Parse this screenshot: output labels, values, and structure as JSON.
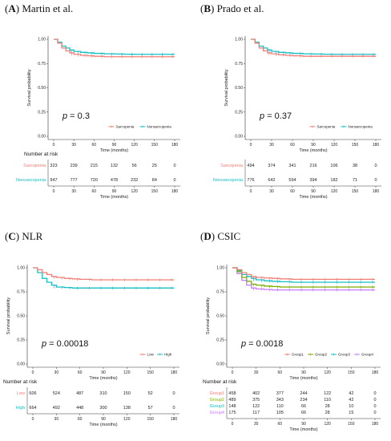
{
  "chart_data": [
    {
      "type": "line",
      "panel_letter": "A",
      "title": "Martin et al.",
      "xlabel": "Time (months)",
      "ylabel": "Survival probability",
      "xlim": [
        0,
        180
      ],
      "ylim": [
        0,
        1
      ],
      "x_ticks": [
        "0",
        "30",
        "60",
        "90",
        "120",
        "150",
        "180"
      ],
      "y_ticks": [
        "0.00",
        "0.25",
        "0.50",
        "0.75",
        "1.00"
      ],
      "p_label": "p",
      "p_value": " = 0.3",
      "legend_position": "bottom-right",
      "x": [
        0,
        6,
        12,
        18,
        24,
        30,
        40,
        50,
        60,
        75,
        90,
        105,
        120,
        135,
        150,
        165,
        180
      ],
      "series": [
        {
          "name": "Sarcopenia",
          "color": "#f07f77",
          "values": [
            1.0,
            0.96,
            0.91,
            0.88,
            0.86,
            0.845,
            0.835,
            0.83,
            0.825,
            0.82,
            0.82,
            0.82,
            0.82,
            0.82,
            0.82,
            0.82,
            0.82
          ]
        },
        {
          "name": "Nonsarcopenia",
          "color": "#17bfc4",
          "values": [
            1.0,
            0.97,
            0.93,
            0.91,
            0.89,
            0.875,
            0.865,
            0.86,
            0.855,
            0.85,
            0.848,
            0.846,
            0.845,
            0.845,
            0.845,
            0.845,
            0.845
          ]
        }
      ],
      "risk_table": {
        "title": "Number at risk",
        "rows": [
          {
            "label": "Sarcopenia",
            "color": "#f07f77",
            "values": [
              "323",
              "239",
              "215",
              "132",
              "56",
              "25",
              "0"
            ]
          },
          {
            "label": "Nonsarcopenia",
            "color": "#17bfc4",
            "values": [
              "947",
              "777",
              "720",
              "478",
              "232",
              "84",
              "0"
            ]
          }
        ],
        "xlabel": "Time (months)",
        "x_ticks": [
          "0",
          "30",
          "60",
          "90",
          "120",
          "150",
          "180"
        ]
      }
    },
    {
      "type": "line",
      "panel_letter": "B",
      "title": "Prado et al.",
      "xlabel": "Time (months)",
      "ylabel": "Survival probability",
      "xlim": [
        0,
        180
      ],
      "ylim": [
        0,
        1
      ],
      "x_ticks": [
        "0",
        "30",
        "60",
        "90",
        "120",
        "150",
        "180"
      ],
      "y_ticks": [
        "0.00",
        "0.25",
        "0.50",
        "0.75",
        "1.00"
      ],
      "p_label": "p",
      "p_value": " = 0.37",
      "legend_position": "bottom-right",
      "x": [
        0,
        6,
        12,
        18,
        24,
        30,
        40,
        50,
        60,
        75,
        90,
        105,
        120,
        135,
        150,
        165,
        180
      ],
      "series": [
        {
          "name": "Sarcopenia",
          "color": "#f07f77",
          "values": [
            1.0,
            0.96,
            0.91,
            0.88,
            0.86,
            0.85,
            0.84,
            0.835,
            0.83,
            0.825,
            0.825,
            0.825,
            0.825,
            0.825,
            0.825,
            0.825,
            0.825
          ]
        },
        {
          "name": "Nonsarcopenia",
          "color": "#17bfc4",
          "values": [
            1.0,
            0.97,
            0.93,
            0.91,
            0.89,
            0.875,
            0.865,
            0.86,
            0.855,
            0.85,
            0.848,
            0.846,
            0.845,
            0.845,
            0.845,
            0.845,
            0.845
          ]
        }
      ],
      "risk_table": {
        "title": "",
        "rows": [
          {
            "label": "Sarcopenia",
            "color": "#f07f77",
            "values": [
              "494",
              "374",
              "341",
              "216",
              "106",
              "38",
              "0"
            ]
          },
          {
            "label": "Nonsarcopenia",
            "color": "#17bfc4",
            "values": [
              "776",
              "642",
              "594",
              "394",
              "182",
              "71",
              "0"
            ]
          }
        ],
        "xlabel": "Time (months)",
        "x_ticks": [
          "0",
          "30",
          "60",
          "90",
          "120",
          "150",
          "180"
        ]
      }
    },
    {
      "type": "line",
      "panel_letter": "C",
      "title": "NLR",
      "xlabel": "Time (months)",
      "ylabel": "Survival probability",
      "xlim": [
        0,
        180
      ],
      "ylim": [
        0,
        1
      ],
      "x_ticks": [
        "0",
        "30",
        "60",
        "90",
        "120",
        "150",
        "180"
      ],
      "y_ticks": [
        "0.00",
        "0.25",
        "0.50",
        "0.75",
        "1.00"
      ],
      "p_label": "p",
      "p_value": " = 0.00018",
      "legend_position": "bottom-right",
      "x": [
        0,
        6,
        12,
        18,
        24,
        30,
        40,
        50,
        60,
        75,
        90,
        105,
        120,
        135,
        150,
        165,
        180
      ],
      "series": [
        {
          "name": "Low",
          "color": "#f07f77",
          "values": [
            1.0,
            0.98,
            0.95,
            0.93,
            0.91,
            0.9,
            0.89,
            0.885,
            0.88,
            0.875,
            0.875,
            0.875,
            0.875,
            0.875,
            0.875,
            0.875,
            0.875
          ]
        },
        {
          "name": "High",
          "color": "#17bfc4",
          "values": [
            1.0,
            0.95,
            0.89,
            0.85,
            0.82,
            0.8,
            0.795,
            0.79,
            0.79,
            0.79,
            0.79,
            0.79,
            0.79,
            0.79,
            0.79,
            0.79,
            0.79
          ]
        }
      ],
      "risk_table": {
        "title": "Number at risk",
        "rows": [
          {
            "label": "Low",
            "color": "#f07f77",
            "values": [
              "606",
              "524",
              "487",
              "310",
              "150",
              "52",
              "0"
            ]
          },
          {
            "label": "High",
            "color": "#17bfc4",
            "values": [
              "664",
              "492",
              "448",
              "300",
              "138",
              "57",
              "0"
            ]
          }
        ],
        "xlabel": "Time (months)",
        "x_ticks": [
          "0",
          "30",
          "60",
          "90",
          "120",
          "150",
          "180"
        ]
      }
    },
    {
      "type": "line",
      "panel_letter": "D",
      "title": "CSIC",
      "xlabel": "Time (months)",
      "ylabel": "Survival probability",
      "xlim": [
        0,
        180
      ],
      "ylim": [
        0,
        1
      ],
      "x_ticks": [
        "0",
        "30",
        "60",
        "90",
        "120",
        "150",
        "180"
      ],
      "y_ticks": [
        "0.00",
        "0.25",
        "0.50",
        "0.75",
        "1.00"
      ],
      "p_label": "p",
      "p_value": " = 0.0018",
      "legend_position": "bottom-right",
      "x": [
        0,
        6,
        12,
        18,
        24,
        30,
        40,
        50,
        60,
        75,
        90,
        105,
        120,
        135,
        150,
        165,
        180
      ],
      "series": [
        {
          "name": "Group1",
          "color": "#f07f77",
          "values": [
            1.0,
            0.98,
            0.95,
            0.93,
            0.91,
            0.9,
            0.895,
            0.89,
            0.885,
            0.88,
            0.88,
            0.88,
            0.88,
            0.88,
            0.88,
            0.88,
            0.88
          ]
        },
        {
          "name": "Group2",
          "color": "#7cae00",
          "values": [
            1.0,
            0.96,
            0.9,
            0.86,
            0.83,
            0.82,
            0.81,
            0.805,
            0.8,
            0.8,
            0.8,
            0.8,
            0.8,
            0.8,
            0.8,
            0.8,
            0.8
          ]
        },
        {
          "name": "Group3",
          "color": "#17bfc4",
          "values": [
            1.0,
            0.97,
            0.93,
            0.91,
            0.89,
            0.875,
            0.865,
            0.86,
            0.855,
            0.85,
            0.85,
            0.85,
            0.85,
            0.85,
            0.85,
            0.85,
            0.85
          ]
        },
        {
          "name": "Group4",
          "color": "#c77cff",
          "values": [
            1.0,
            0.94,
            0.87,
            0.82,
            0.79,
            0.78,
            0.775,
            0.77,
            0.77,
            0.77,
            0.77,
            0.77,
            0.77,
            0.77,
            0.77,
            0.77,
            0.77
          ]
        }
      ],
      "risk_table": {
        "title": "Number at risk",
        "rows": [
          {
            "label": "Group1",
            "color": "#f07f77",
            "values": [
              "458",
              "402",
              "377",
              "244",
              "122",
              "42",
              "0"
            ]
          },
          {
            "label": "Group2",
            "color": "#7cae00",
            "values": [
              "489",
              "375",
              "343",
              "234",
              "110",
              "42",
              "0"
            ]
          },
          {
            "label": "Group3",
            "color": "#17bfc4",
            "values": [
              "148",
              "122",
              "110",
              "66",
              "28",
              "10",
              "0"
            ]
          },
          {
            "label": "Group4",
            "color": "#c77cff",
            "values": [
              "175",
              "117",
              "105",
              "66",
              "28",
              "15",
              "0"
            ]
          }
        ],
        "xlabel": "Time (months)",
        "x_ticks": [
          "0",
          "30",
          "60",
          "90",
          "120",
          "150",
          "180"
        ]
      }
    }
  ]
}
